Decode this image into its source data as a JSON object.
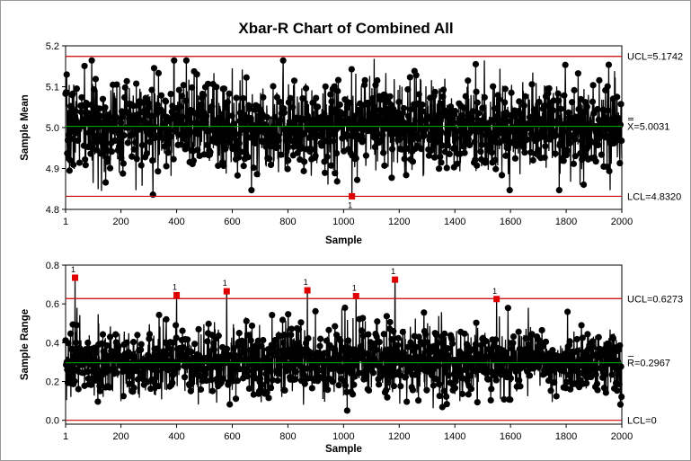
{
  "title": "Xbar-R Chart of Combined All",
  "colors": {
    "limit_line": "#cc0000",
    "data": "#000000",
    "out_of_control": "#e00000"
  },
  "chart_data": [
    {
      "type": "line",
      "name": "xbar",
      "ylabel": "Sample Mean",
      "xlabel": "Sample",
      "ylim": [
        4.8,
        5.2
      ],
      "xlim": [
        1,
        2000
      ],
      "yticks": [
        "4.8",
        "4.9",
        "5.0",
        "5.1",
        "5.2"
      ],
      "xticks": [
        "1",
        "200",
        "400",
        "600",
        "800",
        "1000",
        "1200",
        "1400",
        "1600",
        "1800",
        "2000"
      ],
      "limits": {
        "ucl": 5.1742,
        "center": 5.0031,
        "lcl": 4.832,
        "ucl_label": "UCL=5.1742",
        "center_label": "X=5.0031",
        "lcl_label": "LCL=4.8320"
      },
      "sample_count": 2000,
      "spread_sd": 0.055,
      "extremes": [
        {
          "x": 130,
          "y": 4.845
        },
        {
          "x": 315,
          "y": 4.836
        },
        {
          "x": 390,
          "y": 5.155
        },
        {
          "x": 600,
          "y": 5.145
        },
        {
          "x": 1110,
          "y": 5.168
        },
        {
          "x": 1475,
          "y": 5.155
        },
        {
          "x": 1850,
          "y": 4.86
        }
      ],
      "out_of_control": [
        {
          "x": 1030,
          "y": 4.832,
          "label": "1"
        }
      ]
    },
    {
      "type": "line",
      "name": "range",
      "ylabel": "Sample Range",
      "xlabel": "Sample",
      "ylim": [
        -0.02,
        0.8
      ],
      "xlim": [
        1,
        2000
      ],
      "yticks": [
        "0.0",
        "0.2",
        "0.4",
        "0.6",
        "0.8"
      ],
      "xticks": [
        "1",
        "200",
        "400",
        "600",
        "800",
        "1000",
        "1200",
        "1400",
        "1600",
        "1800",
        "2000"
      ],
      "limits": {
        "ucl": 0.6273,
        "center": 0.2967,
        "lcl": 0,
        "ucl_label": "UCL=0.6273",
        "center_label": "R=0.2967",
        "lcl_label": "LCL=0"
      },
      "sample_count": 2000,
      "spread_sd": 0.095,
      "out_of_control": [
        {
          "x": 35,
          "y": 0.735,
          "label": "1"
        },
        {
          "x": 400,
          "y": 0.645,
          "label": "1"
        },
        {
          "x": 580,
          "y": 0.665,
          "label": "1"
        },
        {
          "x": 870,
          "y": 0.67,
          "label": "1"
        },
        {
          "x": 1045,
          "y": 0.64,
          "label": "1"
        },
        {
          "x": 1185,
          "y": 0.725,
          "label": "1"
        },
        {
          "x": 1550,
          "y": 0.625,
          "label": "1"
        }
      ]
    }
  ]
}
